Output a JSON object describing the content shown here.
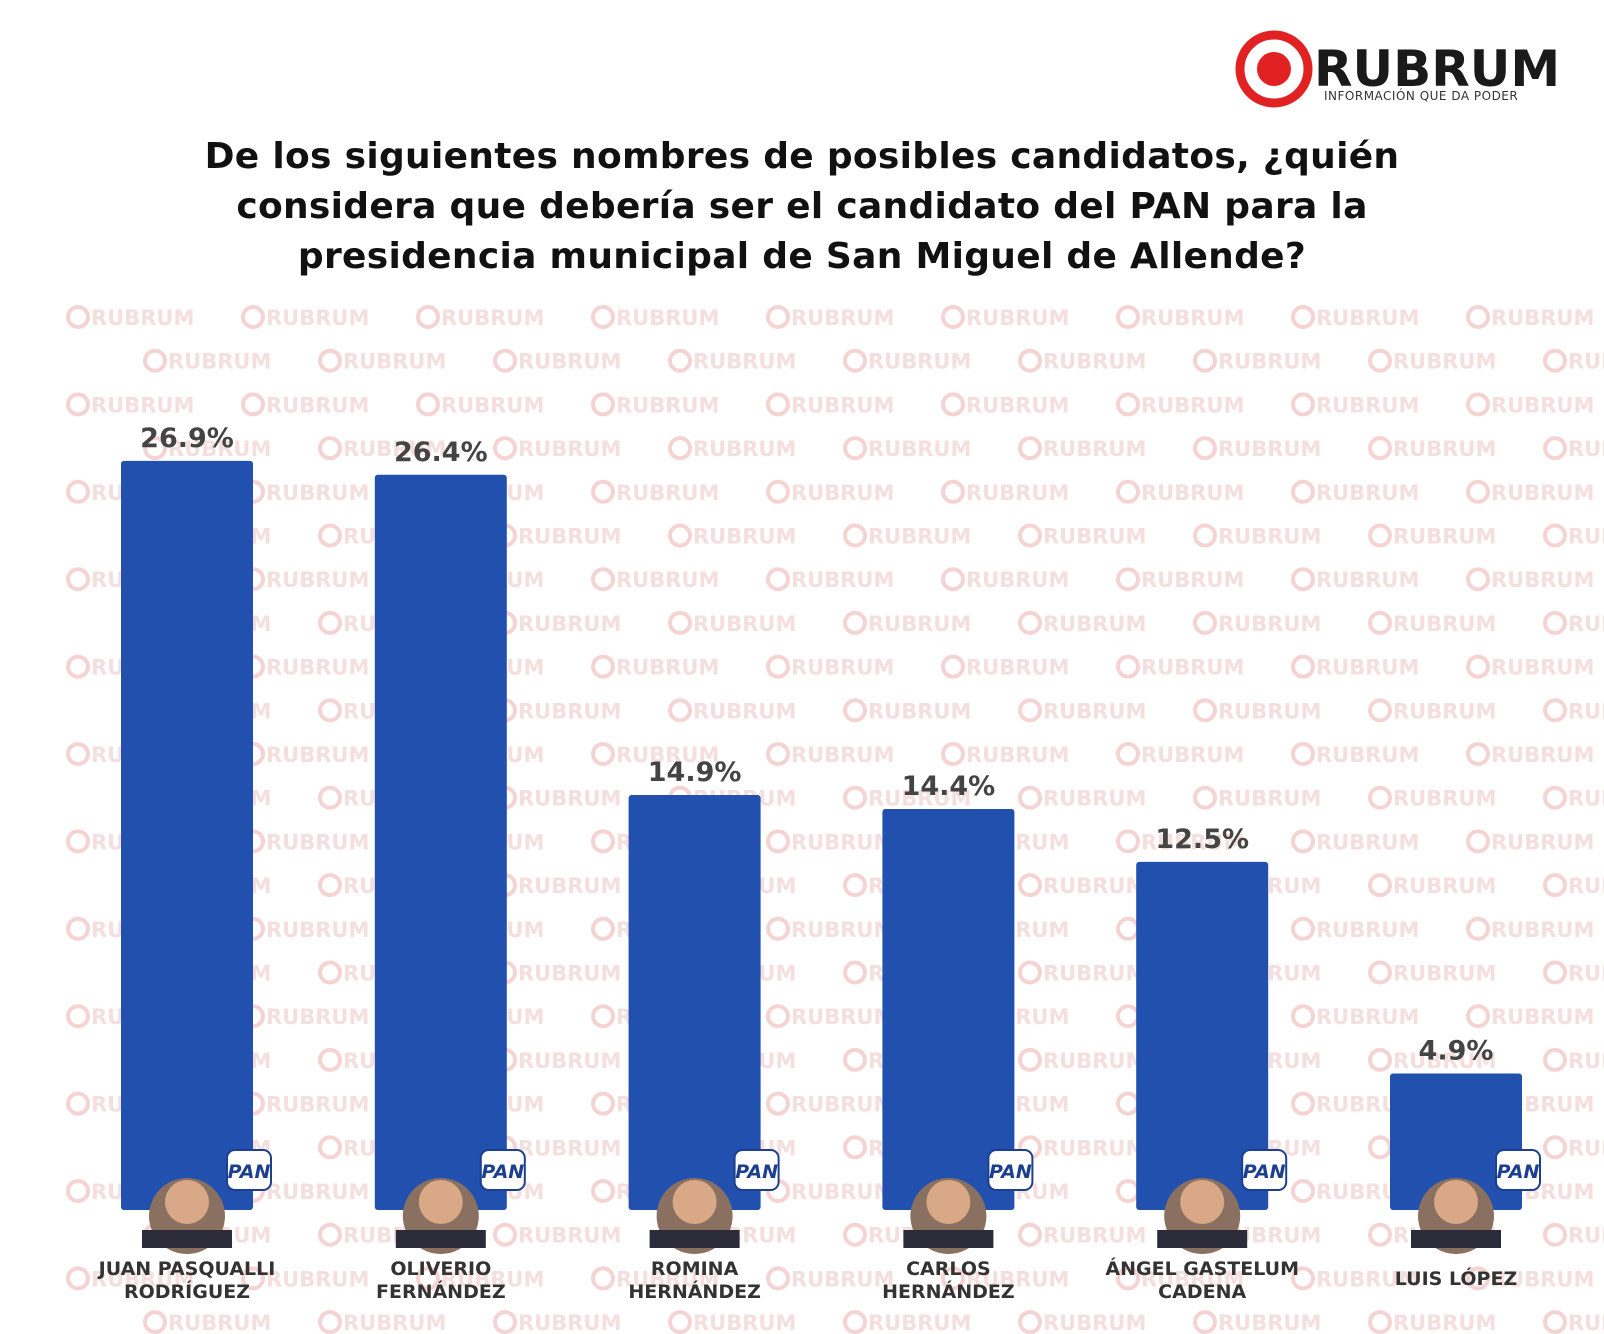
{
  "brand": {
    "name": "RUBRUM",
    "tagline": "INFORMACIÓN QUE DA PODER"
  },
  "watermark": "RUBRUM",
  "party_logo": "PAN",
  "chart_data": {
    "type": "bar",
    "title": "De los siguientes nombres de posibles candidatos, ¿quién considera que debería ser el candidato del PAN para la presidencia municipal de San Miguel de Allende?",
    "categories": [
      "JUAN PASQUALLI\nRODRÍGUEZ",
      "OLIVERIO\nFERNÁNDEZ",
      "ROMINA\nHERNÁNDEZ",
      "CARLOS\nHERNÁNDEZ",
      "ÁNGEL GASTELUM\nCADENA",
      "LUIS LÓPEZ"
    ],
    "values": [
      26.9,
      26.4,
      14.9,
      14.4,
      12.5,
      4.9
    ],
    "value_labels": [
      "26.9%",
      "26.4%",
      "14.9%",
      "14.4%",
      "12.5%",
      "4.9%"
    ],
    "color": "#2150ae"
  }
}
